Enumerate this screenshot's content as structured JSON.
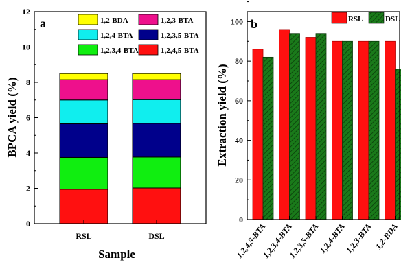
{
  "chart_data": [
    {
      "type": "bar",
      "stacked": true,
      "panel_label": "a",
      "categories": [
        "RSL",
        "DSL"
      ],
      "series": [
        {
          "name": "1,2,4,5-BTA",
          "color": "#ff1010",
          "values": [
            1.95,
            2.02
          ]
        },
        {
          "name": "1,2,3,4-BTA",
          "color": "#10ee10",
          "values": [
            1.8,
            1.75
          ]
        },
        {
          "name": "1,2,3,5-BTA",
          "color": "#00008b",
          "values": [
            1.9,
            1.9
          ]
        },
        {
          "name": "1,2,4-BTA",
          "color": "#10eeee",
          "values": [
            1.35,
            1.35
          ]
        },
        {
          "name": "1,2,3-BTA",
          "color": "#ee108c",
          "values": [
            1.15,
            1.13
          ]
        },
        {
          "name": "1,2-BDA",
          "color": "#ffff00",
          "values": [
            0.35,
            0.35
          ]
        }
      ],
      "legend_order": [
        "1,2-BDA",
        "1,2,3-BTA",
        "1,2,4-BTA",
        "1,2,3,5-BTA",
        "1,2,3,4-BTA",
        "1,2,4,5-BTA"
      ],
      "xlabel": "Sample",
      "ylabel": "BPCA yield (%)",
      "ylim": [
        0,
        12
      ],
      "yticks": [
        "0",
        "2",
        "4",
        "6",
        "8",
        "10",
        "12"
      ],
      "grid": false,
      "legend_position": "top"
    },
    {
      "type": "bar",
      "panel_label": "b",
      "categories": [
        "1,2,4,5-BTA",
        "1,2,3,4-BTA",
        "1,2,3,5-BTA",
        "1,2,4-BTA",
        "1,2,3-BTA",
        "1,2-BDA"
      ],
      "series": [
        {
          "name": "RSL",
          "color": "#ff1010",
          "pattern": "solid",
          "values": [
            86,
            96,
            92,
            90,
            90,
            90
          ]
        },
        {
          "name": "DSL",
          "color": "#1a7a1a",
          "pattern": "hatched",
          "values": [
            82,
            94,
            94,
            90,
            90,
            76
          ]
        }
      ],
      "xlabel": "",
      "ylabel": "Extraction yield (%)",
      "ylim": [
        0,
        105
      ],
      "yticks": [
        "0",
        "20",
        "40",
        "60",
        "80",
        "100"
      ],
      "grid": false,
      "legend_position": "top-right"
    }
  ]
}
